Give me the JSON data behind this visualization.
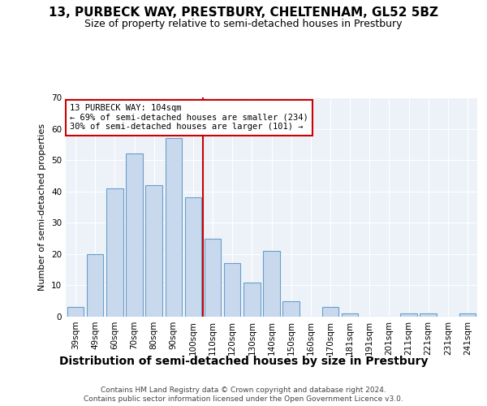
{
  "title": "13, PURBECK WAY, PRESTBURY, CHELTENHAM, GL52 5BZ",
  "subtitle": "Size of property relative to semi-detached houses in Prestbury",
  "xlabel": "Distribution of semi-detached houses by size in Prestbury",
  "ylabel": "Number of semi-detached properties",
  "categories": [
    "39sqm",
    "49sqm",
    "60sqm",
    "70sqm",
    "80sqm",
    "90sqm",
    "100sqm",
    "110sqm",
    "120sqm",
    "130sqm",
    "140sqm",
    "150sqm",
    "160sqm",
    "170sqm",
    "181sqm",
    "191sqm",
    "201sqm",
    "211sqm",
    "221sqm",
    "231sqm",
    "241sqm"
  ],
  "values": [
    3,
    20,
    41,
    52,
    42,
    57,
    38,
    25,
    17,
    11,
    21,
    5,
    0,
    3,
    1,
    0,
    0,
    1,
    1,
    0,
    1
  ],
  "bar_color": "#c8d9ee",
  "bar_edge_color": "#6a9ec8",
  "highlight_color": "#cc0000",
  "annotation_title": "13 PURBECK WAY: 104sqm",
  "annotation_line1": "← 69% of semi-detached houses are smaller (234)",
  "annotation_line2": "30% of semi-detached houses are larger (101) →",
  "ylim": [
    0,
    70
  ],
  "yticks": [
    0,
    10,
    20,
    30,
    40,
    50,
    60,
    70
  ],
  "footer1": "Contains HM Land Registry data © Crown copyright and database right 2024.",
  "footer2": "Contains public sector information licensed under the Open Government Licence v3.0.",
  "background_color": "#ffffff",
  "plot_bg_color": "#edf2f9",
  "grid_color": "#ffffff",
  "title_fontsize": 11,
  "subtitle_fontsize": 9,
  "xlabel_fontsize": 10,
  "ylabel_fontsize": 8,
  "tick_fontsize": 7.5,
  "footer_fontsize": 6.5
}
